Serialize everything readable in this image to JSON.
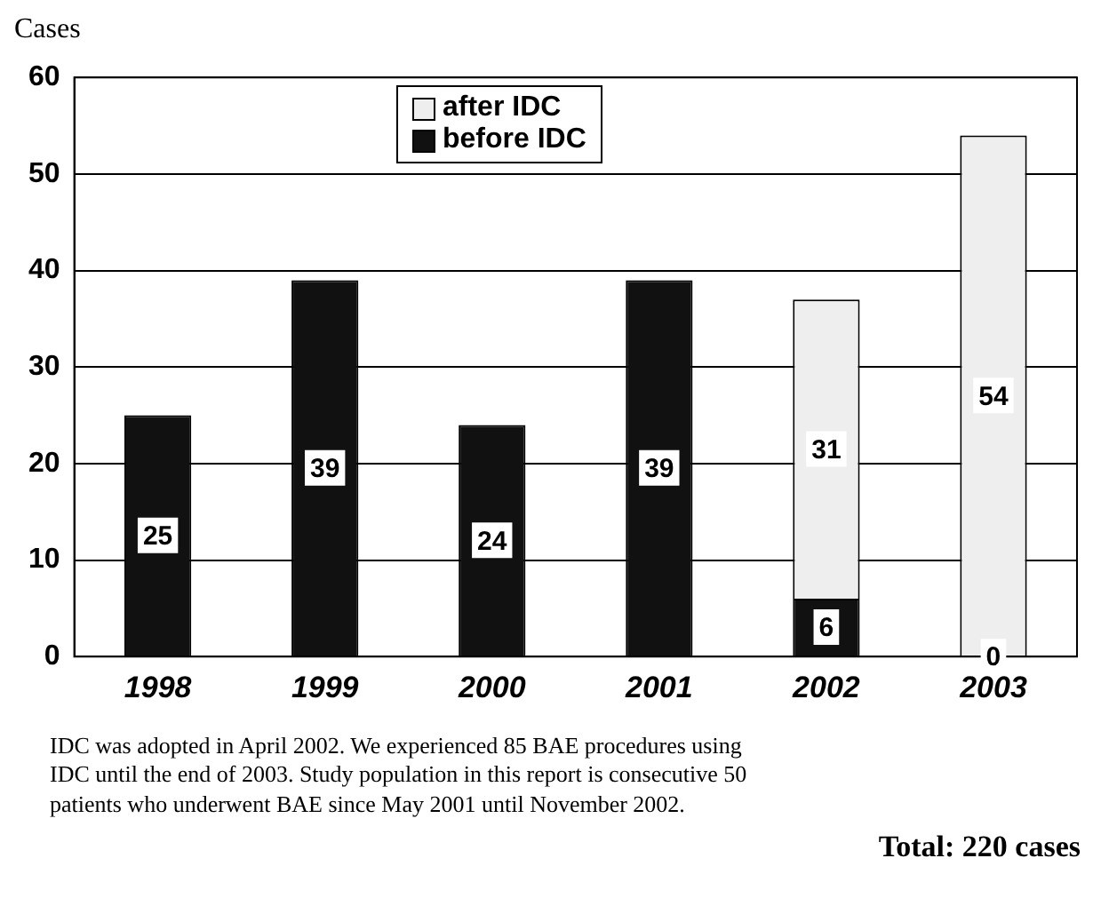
{
  "chart_data": {
    "type": "bar",
    "ylabel": "Cases",
    "categories": [
      "1998",
      "1999",
      "2000",
      "2001",
      "2002",
      "2003"
    ],
    "stacked": true,
    "series": [
      {
        "name": "before IDC",
        "color": "#111111",
        "values": [
          25,
          39,
          24,
          39,
          6,
          0
        ],
        "value_labels": [
          "25",
          "39",
          "24",
          "39",
          "6",
          null
        ]
      },
      {
        "name": "after IDC",
        "color": "#eeeeee",
        "values": [
          null,
          null,
          null,
          null,
          31,
          54
        ],
        "value_labels": [
          null,
          null,
          null,
          null,
          "31",
          "54"
        ]
      }
    ],
    "ylim": [
      0,
      60
    ],
    "yticks": [
      0,
      10,
      20,
      30,
      40,
      50,
      60
    ],
    "grid": "y",
    "legend": "top",
    "annotations": [
      {
        "text": "0",
        "x": "2003",
        "y": 0
      },
      "IDC was adopted in April 2002. We experienced  85 BAE procedures using IDC until the end of 2003. Study population in this report is consecutive 50 patients who underwent BAE since May 2001 until November 2002.",
      "Total: 220 cases"
    ]
  }
}
